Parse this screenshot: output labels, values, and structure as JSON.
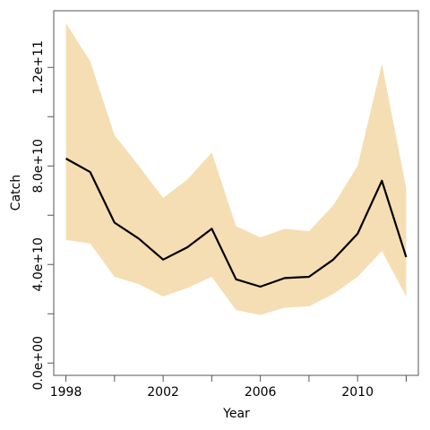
{
  "chart_data": {
    "type": "line",
    "xlabel": "Year",
    "ylabel": "Catch",
    "xlim": [
      1997.5,
      2012.5
    ],
    "ylim": [
      -5000000000,
      143000000000
    ],
    "x_ticks": [
      1998,
      2000,
      2002,
      2004,
      2006,
      2008,
      2010,
      2012
    ],
    "x_tick_labels": [
      {
        "value": 1998,
        "label": "1998"
      },
      {
        "value": 2002,
        "label": "2002"
      },
      {
        "value": 2006,
        "label": "2006"
      },
      {
        "value": 2010,
        "label": "2010"
      }
    ],
    "y_ticks": [
      0,
      20000000000,
      40000000000,
      60000000000,
      80000000000,
      100000000000,
      120000000000
    ],
    "y_tick_labels": [
      {
        "value": 0,
        "label": "0.0e+00"
      },
      {
        "value": 40000000000,
        "label": "4.0e+10"
      },
      {
        "value": 80000000000,
        "label": "8.0e+10"
      },
      {
        "value": 120000000000,
        "label": "1.2e+11"
      }
    ],
    "x": [
      1998,
      1999,
      2000,
      2001,
      2002,
      2003,
      2004,
      2005,
      2006,
      2007,
      2008,
      2009,
      2010,
      2011,
      2012
    ],
    "series": [
      {
        "values": [
          83000000000,
          77500000000,
          57000000000,
          50500000000,
          42000000000,
          47000000000,
          54500000000,
          34000000000,
          31000000000,
          34500000000,
          35000000000,
          42000000000,
          52500000000,
          74000000000,
          43000000000
        ]
      }
    ],
    "band": {
      "lower": [
        50000000000,
        48500000000,
        35000000000,
        32000000000,
        27000000000,
        30500000000,
        35000000000,
        21500000000,
        19500000000,
        22500000000,
        23000000000,
        28000000000,
        35000000000,
        45500000000,
        27000000000
      ],
      "upper": [
        138000000000,
        122500000000,
        92500000000,
        80000000000,
        67000000000,
        74500000000,
        85500000000,
        55500000000,
        51000000000,
        54500000000,
        53500000000,
        64000000000,
        80000000000,
        121500000000,
        71000000000
      ]
    },
    "colors": {
      "band": "#f5deb3",
      "line": "#000000",
      "axis": "#555555"
    },
    "grid": false,
    "legend": "none"
  }
}
